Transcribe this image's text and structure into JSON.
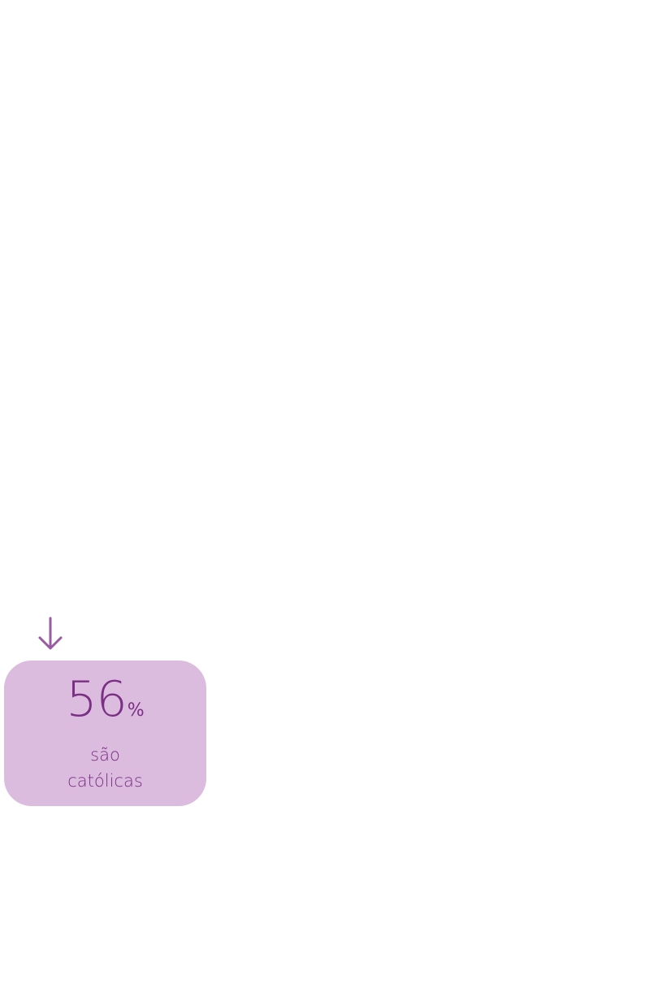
{
  "stat": {
    "value": "56",
    "unit": "%",
    "caption_line1": "são",
    "caption_line2": "católicas"
  },
  "colors": {
    "card_bg": "#dcbcde",
    "text": "#7a2e84",
    "arrow": "#9a5aa2"
  },
  "icons": {
    "arrow": "arrow-down-icon"
  }
}
